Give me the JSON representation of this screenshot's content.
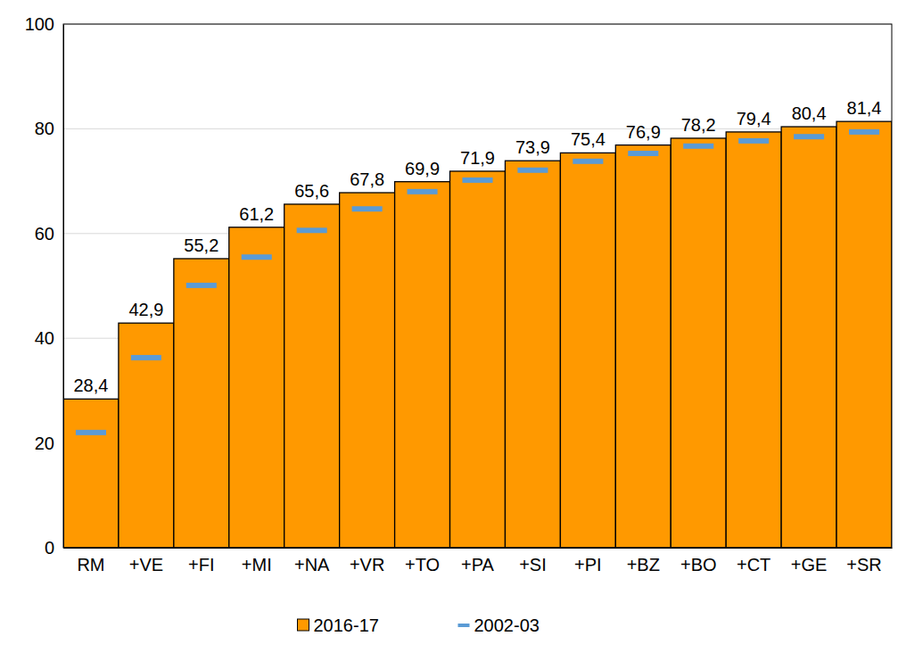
{
  "chart_data": {
    "type": "bar",
    "categories": [
      "RM",
      "+VE",
      "+FI",
      "+MI",
      "+NA",
      "+VR",
      "+TO",
      "+PA",
      "+SI",
      "+PI",
      "+BZ",
      "+BO",
      "+CT",
      "+GE",
      "+SR"
    ],
    "series": [
      {
        "name": "2016-17",
        "type": "bar",
        "color": "#ff9900",
        "values": [
          28.4,
          42.9,
          55.2,
          61.2,
          65.6,
          67.8,
          69.9,
          71.9,
          73.9,
          75.4,
          76.9,
          78.2,
          79.4,
          80.4,
          81.4
        ],
        "value_labels": [
          "28,4",
          "42,9",
          "55,2",
          "61,2",
          "65,6",
          "67,8",
          "69,9",
          "71,9",
          "73,9",
          "75,4",
          "76,9",
          "78,2",
          "79,4",
          "80,4",
          "81,4"
        ]
      },
      {
        "name": "2002-03",
        "type": "scatter",
        "marker": "dash",
        "color": "#5b9bd5",
        "values": [
          22.0,
          36.3,
          50.1,
          55.5,
          60.6,
          64.7,
          68.0,
          70.2,
          72.1,
          73.8,
          75.3,
          76.7,
          77.7,
          78.5,
          79.4
        ]
      }
    ],
    "ylim": [
      0,
      100
    ],
    "yticks": [
      0,
      20,
      40,
      60,
      80,
      100
    ],
    "grid": true,
    "data_labels": true,
    "legend": "bottom"
  }
}
